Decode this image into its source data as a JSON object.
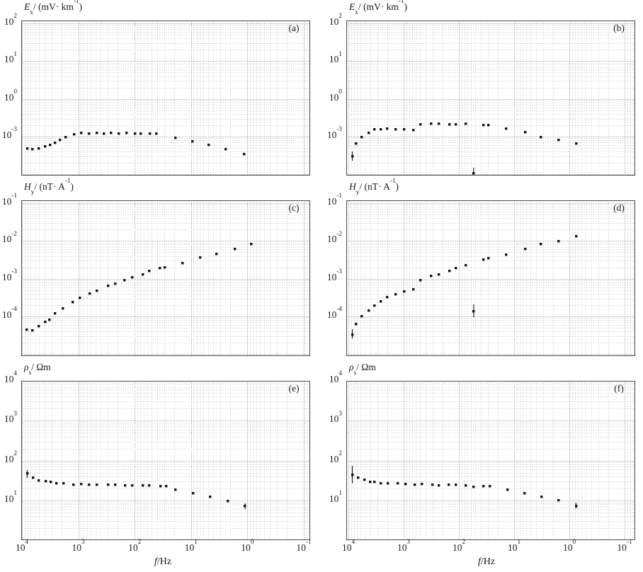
{
  "figure": {
    "description": "Six-panel log-log scatter figure: electric field Ex, magnetic field Hy and apparent resistivity rho_s versus frequency; x axis reversed from 10^4 Hz (left) to 10^-1 Hz (right); dotted log minor/major grid; black square markers with occasional vertical error bars.",
    "xlabel": {
      "var": "f",
      "rest": "/Hz"
    },
    "xtick_exponents": [
      4,
      3,
      2,
      1,
      0,
      -1
    ],
    "marker_color": "#141414",
    "grid_minor_color": "#c9c9c9",
    "grid_major_color": "#9b9b9b",
    "border_color": "#474747"
  },
  "chart_data": [
    {
      "id": "a",
      "type": "scatter",
      "corner_label": "(a)",
      "ylabel": {
        "var": "E",
        "sub": "x",
        "pre": "/ (mV· km",
        "sup": "-1",
        "post": ")"
      },
      "ytick_exponents": [
        2,
        1,
        0,
        -3
      ],
      "xlim": [
        10000,
        0.1
      ],
      "points": [
        [
          8100,
          0.00012
        ],
        [
          6500,
          9.7e-05
        ],
        [
          5100,
          0.00011
        ],
        [
          3900,
          0.00017
        ],
        [
          3200,
          0.00022
        ],
        [
          2600,
          0.00032
        ],
        [
          2100,
          0.00055
        ],
        [
          1700,
          0.00093
        ],
        [
          1200,
          0.00145
        ],
        [
          890,
          0.0021
        ],
        [
          650,
          0.0018
        ],
        [
          470,
          0.0021
        ],
        [
          350,
          0.0018
        ],
        [
          260,
          0.0021
        ],
        [
          190,
          0.0018
        ],
        [
          140,
          0.0021
        ],
        [
          100,
          0.00165
        ],
        [
          78,
          0.00165
        ],
        [
          53,
          0.0018
        ],
        [
          41,
          0.00165
        ],
        [
          19,
          0.00083
        ],
        [
          9.5,
          0.00044
        ],
        [
          4.9,
          0.00022
        ],
        [
          2.4,
          0.000105
        ],
        [
          1.15,
          4e-05
        ]
      ],
      "errorbars": []
    },
    {
      "id": "b",
      "type": "scatter",
      "corner_label": "(b)",
      "ylabel": {
        "var": "E",
        "sub": "x",
        "pre": "/ (mV· km",
        "sup": "-1",
        "post": ")"
      },
      "ytick_exponents": [
        2,
        1,
        0,
        -3
      ],
      "xlim": [
        10000,
        0.1
      ],
      "points": [
        [
          8500,
          2.8e-05
        ],
        [
          7200,
          0.0003
        ],
        [
          5800,
          0.00087
        ],
        [
          4300,
          0.0019
        ],
        [
          3400,
          0.0036
        ],
        [
          2600,
          0.004
        ],
        [
          2000,
          0.0044
        ],
        [
          1400,
          0.0036
        ],
        [
          980,
          0.0039
        ],
        [
          660,
          0.0034
        ],
        [
          490,
          0.01
        ],
        [
          320,
          0.011
        ],
        [
          230,
          0.0106
        ],
        [
          150,
          0.01
        ],
        [
          112,
          0.01
        ],
        [
          74,
          0.0106
        ],
        [
          54,
          1.3e-06
        ],
        [
          36,
          0.0083
        ],
        [
          29,
          0.0078
        ],
        [
          14,
          0.0044
        ],
        [
          6.3,
          0.0024
        ],
        [
          3.3,
          0.00095
        ],
        [
          1.55,
          0.00055
        ],
        [
          0.74,
          0.0003
        ]
      ],
      "errorbars": [
        {
          "f": 8500,
          "lo": 1.2e-05,
          "hi": 6.6e-05
        },
        {
          "f": 54,
          "lo": 4.8e-07,
          "hi": 3.4e-06
        }
      ]
    },
    {
      "id": "c",
      "type": "scatter",
      "corner_label": "(c)",
      "ylabel": {
        "var": "H",
        "sub": "y",
        "pre": "/ (nT· A",
        "sup": "-1",
        "post": ")"
      },
      "ytick_exponents": [
        -1,
        -2,
        -3,
        -4
      ],
      "xlim": [
        10000,
        0.1
      ],
      "points": [
        [
          8300,
          4.4e-05
        ],
        [
          6500,
          4.2e-05
        ],
        [
          5100,
          5.5e-05
        ],
        [
          3900,
          7.1e-05
        ],
        [
          3250,
          8.1e-05
        ],
        [
          2600,
          0.00012
        ],
        [
          1900,
          0.00016
        ],
        [
          1250,
          0.00024
        ],
        [
          930,
          0.00031
        ],
        [
          620,
          0.0004
        ],
        [
          470,
          0.00049
        ],
        [
          295,
          0.00065
        ],
        [
          220,
          0.00074
        ],
        [
          150,
          0.00091
        ],
        [
          112,
          0.0011
        ],
        [
          72,
          0.0013
        ],
        [
          55,
          0.0016
        ],
        [
          36,
          0.0019
        ],
        [
          29,
          0.002
        ],
        [
          14,
          0.0026
        ],
        [
          6.9,
          0.0037
        ],
        [
          3.5,
          0.0045
        ],
        [
          1.65,
          0.0062
        ],
        [
          0.85,
          0.0081
        ]
      ],
      "errorbars": []
    },
    {
      "id": "d",
      "type": "scatter",
      "corner_label": "(d)",
      "ylabel": {
        "var": "H",
        "sub": "y",
        "pre": "/ (nT· A",
        "sup": "-1",
        "post": ")"
      },
      "ytick_exponents": [
        -1,
        -2,
        -3,
        -4
      ],
      "xlim": [
        10000,
        0.1
      ],
      "points": [
        [
          8500,
          3.3e-05
        ],
        [
          7200,
          6.2e-05
        ],
        [
          5800,
          0.0001
        ],
        [
          4300,
          0.000145
        ],
        [
          3400,
          0.00019
        ],
        [
          2600,
          0.00025
        ],
        [
          2000,
          0.00032
        ],
        [
          1400,
          0.00038
        ],
        [
          980,
          0.00046
        ],
        [
          660,
          0.00052
        ],
        [
          490,
          0.00093
        ],
        [
          320,
          0.00117
        ],
        [
          230,
          0.0013
        ],
        [
          150,
          0.0016
        ],
        [
          112,
          0.0019
        ],
        [
          74,
          0.0023
        ],
        [
          54,
          0.00014
        ],
        [
          36,
          0.0032
        ],
        [
          29,
          0.0035
        ],
        [
          14,
          0.0044
        ],
        [
          6.3,
          0.006
        ],
        [
          3.3,
          0.0081
        ],
        [
          1.55,
          0.01
        ],
        [
          0.74,
          0.0135
        ]
      ],
      "errorbars": [
        {
          "f": 8500,
          "lo": 2.6e-05,
          "hi": 4.6e-05
        },
        {
          "f": 54,
          "lo": 9.5e-05,
          "hi": 0.00021
        }
      ]
    },
    {
      "id": "e",
      "type": "scatter",
      "corner_label": "(e)",
      "ylabel": {
        "var": "ρ",
        "sub": "s",
        "pre": "/ Ωm",
        "sup": "",
        "post": ""
      },
      "ytick_exponents": [
        4,
        3,
        2,
        1
      ],
      "xlim": [
        10000,
        0.1
      ],
      "points": [
        [
          8100,
          47
        ],
        [
          6300,
          37
        ],
        [
          5000,
          32
        ],
        [
          3800,
          30
        ],
        [
          3100,
          29
        ],
        [
          2450,
          27
        ],
        [
          1850,
          27
        ],
        [
          1230,
          25
        ],
        [
          890,
          25.5
        ],
        [
          650,
          24.5
        ],
        [
          470,
          25
        ],
        [
          295,
          24.5
        ],
        [
          220,
          24.5
        ],
        [
          148,
          23.5
        ],
        [
          112,
          23.5
        ],
        [
          72,
          24
        ],
        [
          55,
          23.5
        ],
        [
          35,
          23
        ],
        [
          28,
          22.5
        ],
        [
          19,
          18.7
        ],
        [
          9.1,
          15
        ],
        [
          4.6,
          12.3
        ],
        [
          2.2,
          9.8
        ],
        [
          1.1,
          7.2
        ]
      ],
      "errorbars": [
        {
          "f": 8100,
          "lo": 37,
          "hi": 58
        },
        {
          "f": 1.1,
          "lo": 6.1,
          "hi": 8.5
        }
      ]
    },
    {
      "id": "f",
      "type": "scatter",
      "corner_label": "(f)",
      "ylabel": {
        "var": "ρ",
        "sub": "s",
        "pre": "/ Ωm",
        "sup": "",
        "post": ""
      },
      "ytick_exponents": [
        4,
        3,
        2,
        1
      ],
      "xlim": [
        10000,
        0.1
      ],
      "points": [
        [
          8500,
          45
        ],
        [
          6600,
          37
        ],
        [
          5100,
          32.5
        ],
        [
          4000,
          29.5
        ],
        [
          3400,
          29.5
        ],
        [
          2600,
          27.5
        ],
        [
          1950,
          26.5
        ],
        [
          1290,
          26.5
        ],
        [
          930,
          25.5
        ],
        [
          630,
          25
        ],
        [
          470,
          25.5
        ],
        [
          300,
          24.5
        ],
        [
          230,
          24
        ],
        [
          151,
          24.5
        ],
        [
          112,
          24.5
        ],
        [
          74,
          24
        ],
        [
          54,
          22
        ],
        [
          36,
          23
        ],
        [
          27.5,
          22.5
        ],
        [
          13,
          19
        ],
        [
          6.5,
          15.5
        ],
        [
          3.2,
          12.3
        ],
        [
          1.55,
          10
        ],
        [
          0.76,
          7.4
        ]
      ],
      "errorbars": [
        {
          "f": 8500,
          "lo": 27,
          "hi": 74
        },
        {
          "f": 0.76,
          "lo": 6.3,
          "hi": 8.9
        }
      ]
    }
  ]
}
